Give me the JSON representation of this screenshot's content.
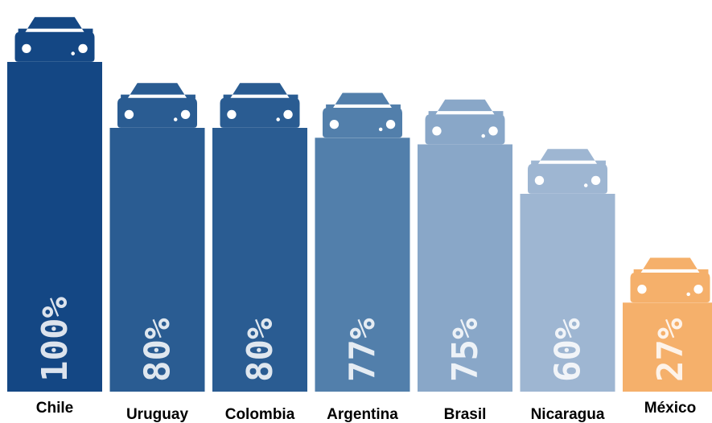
{
  "chart_data": {
    "type": "bar",
    "categories": [
      "Chile",
      "Uruguay",
      "Colombia",
      "Argentina",
      "Brasil",
      "Nicaragua",
      "México"
    ],
    "values": [
      100,
      80,
      80,
      77,
      75,
      60,
      27
    ],
    "value_labels": [
      "100%",
      "80%",
      "80%",
      "77%",
      "75%",
      "60%",
      "27%"
    ],
    "ylim": [
      0,
      100
    ],
    "colors": [
      "#144784",
      "#2a5c92",
      "#2a5c92",
      "#527fab",
      "#89a7c8",
      "#9eb6d2",
      "#f5b06b"
    ],
    "bar_icon": "car-icon",
    "grid": false,
    "legend": "none"
  }
}
